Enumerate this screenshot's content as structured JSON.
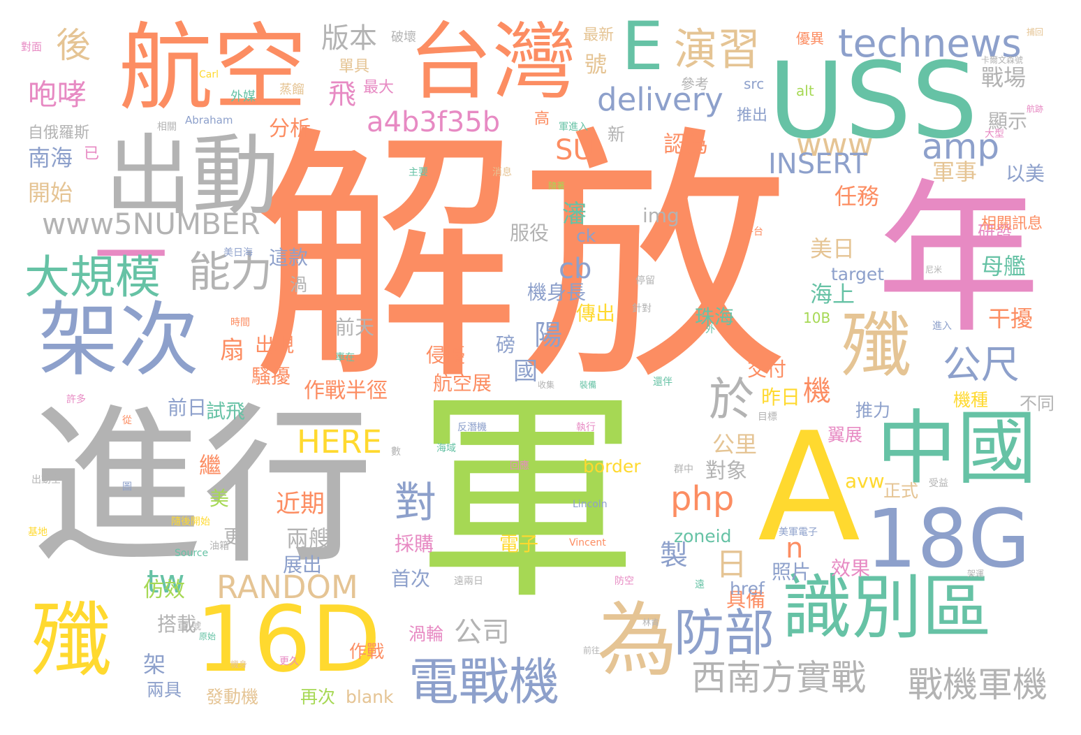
{
  "palette": {
    "orange": "#fc8d62",
    "green": "#66c2a5",
    "blue": "#8da0cb",
    "pink": "#e78ac3",
    "lime": "#a6d854",
    "yellow": "#ffd92f",
    "tan": "#e5c494",
    "gray": "#b3b3b3"
  },
  "words": [
    {
      "text": "解放",
      "color": "orange"
    },
    {
      "text": "軍",
      "color": "lime"
    },
    {
      "text": "進行",
      "color": "gray"
    },
    {
      "text": "年",
      "color": "pink"
    },
    {
      "text": "A",
      "color": "yellow"
    },
    {
      "text": "USS",
      "color": "green"
    },
    {
      "text": "航空",
      "color": "orange"
    },
    {
      "text": "台灣",
      "color": "orange"
    },
    {
      "text": "出動",
      "color": "gray"
    },
    {
      "text": "一",
      "color": "pink"
    },
    {
      "text": "架次",
      "color": "blue"
    },
    {
      "text": "殲",
      "color": "yellow"
    },
    {
      "text": "16D",
      "color": "yellow"
    },
    {
      "text": "中國",
      "color": "green"
    },
    {
      "text": "18G",
      "color": "blue"
    },
    {
      "text": "識別區",
      "color": "green"
    },
    {
      "text": "殲",
      "color": "tan"
    },
    {
      "text": "為",
      "color": "tan"
    },
    {
      "text": "E",
      "color": "green"
    },
    {
      "text": "演習",
      "color": "tan"
    },
    {
      "text": "technews",
      "color": "blue"
    },
    {
      "text": "大規模",
      "color": "green"
    },
    {
      "text": "能力",
      "color": "gray"
    },
    {
      "text": "電戰機",
      "color": "blue"
    },
    {
      "text": "防部",
      "color": "blue"
    },
    {
      "text": "西南方實戰",
      "color": "gray"
    },
    {
      "text": "戰機軍機",
      "color": "gray"
    },
    {
      "text": "www5NUMBER",
      "color": "gray"
    },
    {
      "text": "delivery",
      "color": "blue"
    },
    {
      "text": "a4b3f35b",
      "color": "pink"
    },
    {
      "text": "amp",
      "color": "blue"
    },
    {
      "text": "www",
      "color": "tan"
    },
    {
      "text": "公尺",
      "color": "blue"
    },
    {
      "text": "於",
      "color": "gray"
    },
    {
      "text": "咆哮",
      "color": "pink"
    },
    {
      "text": "後",
      "color": "tan"
    },
    {
      "text": "版本",
      "color": "gray"
    },
    {
      "text": "RANDOM",
      "color": "tan"
    },
    {
      "text": "HERE",
      "color": "yellow"
    },
    {
      "text": "php",
      "color": "orange"
    },
    {
      "text": "INSERT",
      "color": "blue"
    },
    {
      "text": "tw",
      "color": "green"
    },
    {
      "text": "對",
      "color": "blue"
    },
    {
      "text": "日",
      "color": "tan"
    },
    {
      "text": "SU",
      "color": "orange"
    },
    {
      "text": "cb",
      "color": "blue"
    },
    {
      "text": "作戰半徑",
      "color": "orange"
    },
    {
      "text": "公司",
      "color": "gray"
    },
    {
      "text": "製",
      "color": "blue"
    },
    {
      "text": "陽",
      "color": "blue"
    },
    {
      "text": "機",
      "color": "orange"
    },
    {
      "text": "n",
      "color": "orange"
    },
    {
      "text": "扇",
      "color": "orange"
    },
    {
      "text": "近期",
      "color": "orange"
    },
    {
      "text": "兩艘",
      "color": "gray"
    },
    {
      "text": "南海",
      "color": "blue"
    },
    {
      "text": "開始",
      "color": "tan"
    },
    {
      "text": "分析",
      "color": "orange"
    },
    {
      "text": "飛",
      "color": "pink"
    },
    {
      "text": "號",
      "color": "tan"
    },
    {
      "text": "認為",
      "color": "orange"
    },
    {
      "text": "戰場",
      "color": "gray"
    },
    {
      "text": "軍事",
      "color": "tan"
    },
    {
      "text": "以美",
      "color": "blue"
    },
    {
      "text": "顯示",
      "color": "gray"
    },
    {
      "text": "任務",
      "color": "orange"
    },
    {
      "text": "美日",
      "color": "tan"
    },
    {
      "text": "母艦",
      "color": "green"
    },
    {
      "text": "海上",
      "color": "green"
    },
    {
      "text": "干擾",
      "color": "orange"
    },
    {
      "text": "瀋",
      "color": "green"
    },
    {
      "text": "前天",
      "color": "gray"
    },
    {
      "text": "侵擾",
      "color": "orange"
    },
    {
      "text": "國",
      "color": "blue"
    },
    {
      "text": "交付",
      "color": "orange"
    },
    {
      "text": "昨日",
      "color": "yellow"
    },
    {
      "text": "公里",
      "color": "tan"
    },
    {
      "text": "對象",
      "color": "gray"
    },
    {
      "text": "更",
      "color": "gray"
    },
    {
      "text": "出現",
      "color": "orange"
    },
    {
      "text": "騷擾",
      "color": "orange"
    },
    {
      "text": "前日",
      "color": "blue"
    },
    {
      "text": "試飛",
      "color": "green"
    },
    {
      "text": "繼",
      "color": "orange"
    },
    {
      "text": "美",
      "color": "lime"
    },
    {
      "text": "仿效",
      "color": "lime"
    },
    {
      "text": "搭載",
      "color": "gray"
    },
    {
      "text": "架",
      "color": "blue"
    },
    {
      "text": "兩具",
      "color": "blue"
    },
    {
      "text": "發動機",
      "color": "tan"
    },
    {
      "text": "再次",
      "color": "lime"
    },
    {
      "text": "blank",
      "color": "tan"
    },
    {
      "text": "作戰",
      "color": "orange"
    },
    {
      "text": "渦輪",
      "color": "pink"
    },
    {
      "text": "首次",
      "color": "blue"
    },
    {
      "text": "展出",
      "color": "blue"
    },
    {
      "text": "採購",
      "color": "pink"
    },
    {
      "text": "電子",
      "color": "yellow"
    },
    {
      "text": "zoneid",
      "color": "green"
    },
    {
      "text": "照片",
      "color": "blue"
    },
    {
      "text": "效果",
      "color": "pink"
    },
    {
      "text": "具備",
      "color": "orange"
    },
    {
      "text": "href",
      "color": "blue"
    },
    {
      "text": "正式",
      "color": "tan"
    },
    {
      "text": "avw",
      "color": "yellow"
    },
    {
      "text": "翼展",
      "color": "pink"
    },
    {
      "text": "推力",
      "color": "blue"
    },
    {
      "text": "機種",
      "color": "yellow"
    },
    {
      "text": "不同",
      "color": "gray"
    },
    {
      "text": "border",
      "color": "yellow"
    },
    {
      "text": "航空展",
      "color": "orange"
    },
    {
      "text": "磅",
      "color": "blue"
    },
    {
      "text": "傳出",
      "color": "yellow"
    },
    {
      "text": "機身長",
      "color": "blue"
    },
    {
      "text": "服役",
      "color": "gray"
    },
    {
      "text": "img",
      "color": "gray"
    },
    {
      "text": "ck",
      "color": "blue"
    },
    {
      "text": "這款",
      "color": "blue"
    },
    {
      "text": "渦",
      "color": "gray"
    },
    {
      "text": "研發",
      "color": "pink"
    },
    {
      "text": "相關訊息",
      "color": "orange"
    },
    {
      "text": "target",
      "color": "blue"
    },
    {
      "text": "珠海",
      "color": "green"
    },
    {
      "text": "10B",
      "color": "lime"
    },
    {
      "text": "高",
      "color": "orange"
    },
    {
      "text": "新",
      "color": "gray"
    },
    {
      "text": "推出",
      "color": "blue"
    },
    {
      "text": "src",
      "color": "blue"
    },
    {
      "text": "alt",
      "color": "lime"
    },
    {
      "text": "參考",
      "color": "gray"
    },
    {
      "text": "最大",
      "color": "pink"
    },
    {
      "text": "單具",
      "color": "tan"
    },
    {
      "text": "最新",
      "color": "tan"
    },
    {
      "text": "破壞",
      "color": "gray"
    },
    {
      "text": "優異",
      "color": "orange"
    },
    {
      "text": "自俄羅斯",
      "color": "gray"
    },
    {
      "text": "已",
      "color": "pink"
    },
    {
      "text": "外媒",
      "color": "green"
    },
    {
      "text": "蒸餾",
      "color": "tan"
    },
    {
      "text": "Carl",
      "color": "yellow"
    },
    {
      "text": "Abraham",
      "color": "blue"
    },
    {
      "text": "相關",
      "color": "gray"
    },
    {
      "text": "對面",
      "color": "pink"
    },
    {
      "text": "軍進入",
      "color": "green"
    },
    {
      "text": "主要",
      "color": "green"
    },
    {
      "text": "消息",
      "color": "tan"
    },
    {
      "text": "隨著",
      "color": "lime"
    },
    {
      "text": "美日海",
      "color": "blue"
    },
    {
      "text": "時間",
      "color": "orange"
    },
    {
      "text": "車在",
      "color": "green"
    },
    {
      "text": "外",
      "color": "green"
    },
    {
      "text": "平台",
      "color": "orange"
    },
    {
      "text": "停留",
      "color": "gray"
    },
    {
      "text": "針對",
      "color": "gray"
    },
    {
      "text": "進入",
      "color": "blue"
    },
    {
      "text": "尼米",
      "color": "gray"
    },
    {
      "text": "大型",
      "color": "pink"
    },
    {
      "text": "航跡",
      "color": "pink"
    },
    {
      "text": "捕回",
      "color": "tan"
    },
    {
      "text": "卡爾文森號",
      "color": "gray"
    },
    {
      "text": "許多",
      "color": "pink"
    },
    {
      "text": "從",
      "color": "orange"
    },
    {
      "text": "出動空",
      "color": "gray"
    },
    {
      "text": "基地",
      "color": "yellow"
    },
    {
      "text": "Source",
      "color": "green"
    },
    {
      "text": "油箱",
      "color": "gray"
    },
    {
      "text": "隨後開始",
      "color": "yellow"
    },
    {
      "text": "反潛機",
      "color": "blue"
    },
    {
      "text": "執行",
      "color": "pink"
    },
    {
      "text": "海域",
      "color": "green"
    },
    {
      "text": "回應",
      "color": "pink"
    },
    {
      "text": "群中",
      "color": "gray"
    },
    {
      "text": "Lincoln",
      "color": "blue"
    },
    {
      "text": "Vincent",
      "color": "orange"
    },
    {
      "text": "美軍電子",
      "color": "blue"
    },
    {
      "text": "受益",
      "color": "gray"
    },
    {
      "text": "遠兩日",
      "color": "gray"
    },
    {
      "text": "防空",
      "color": "pink"
    },
    {
      "text": "架運",
      "color": "gray"
    },
    {
      "text": "林肯",
      "color": "gray"
    },
    {
      "text": "前往",
      "color": "gray"
    },
    {
      "text": "更久",
      "color": "pink"
    },
    {
      "text": "機身",
      "color": "tan"
    },
    {
      "text": "原始",
      "color": "green"
    },
    {
      "text": "凱號",
      "color": "gray"
    },
    {
      "text": "裝備",
      "color": "green"
    },
    {
      "text": "收集",
      "color": "gray"
    },
    {
      "text": "還伴",
      "color": "green"
    },
    {
      "text": "目標",
      "color": "gray"
    },
    {
      "text": "遠",
      "color": "green"
    },
    {
      "text": "圖",
      "color": "blue"
    },
    {
      "text": "數",
      "color": "gray"
    }
  ]
}
